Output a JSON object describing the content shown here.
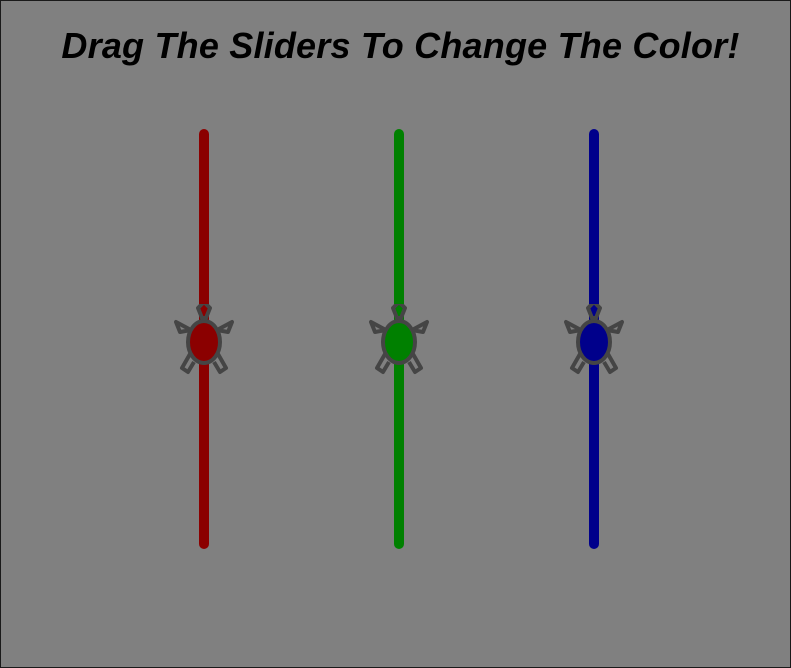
{
  "title": "Drag The Sliders To Change The Color!",
  "colors": {
    "background": "#808080",
    "turtle_outline": "#454545",
    "title_text": "#000000"
  },
  "sliders": [
    {
      "channel": "red",
      "color": "#8b0000",
      "value": 0.5,
      "handle_icon": "turtle-icon"
    },
    {
      "channel": "green",
      "color": "#008000",
      "value": 0.5,
      "handle_icon": "turtle-icon"
    },
    {
      "channel": "blue",
      "color": "#00008b",
      "value": 0.5,
      "handle_icon": "turtle-icon"
    }
  ]
}
